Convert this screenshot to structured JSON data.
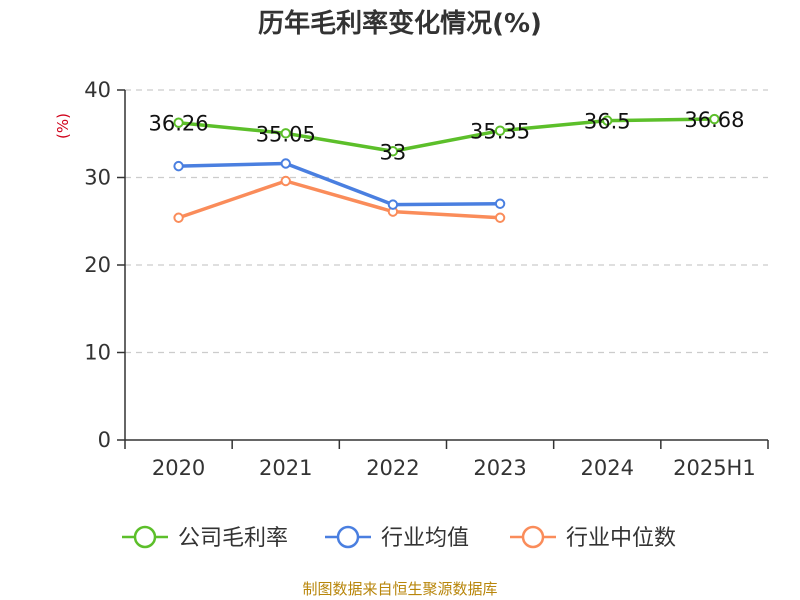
{
  "title": "历年毛利率变化情况(%)",
  "source": "制图数据来自恒生聚源数据库",
  "chart_data": {
    "type": "line",
    "title": "历年毛利率变化情况(%)",
    "xlabel": "",
    "ylabel": "(%)",
    "categories": [
      "2020",
      "2021",
      "2022",
      "2023",
      "2024",
      "2025H1"
    ],
    "ylim": [
      0,
      40
    ],
    "yticks": [
      0,
      10,
      20,
      30,
      40
    ],
    "grid": true,
    "legend_position": "bottom",
    "series": [
      {
        "name": "公司毛利率",
        "color": "#5cbf2a",
        "labeled": true,
        "values": [
          36.26,
          35.05,
          33,
          35.35,
          36.5,
          36.68
        ]
      },
      {
        "name": "行业均值",
        "color": "#4a7fe0",
        "labeled": false,
        "values": [
          31.3,
          31.6,
          26.9,
          27.0,
          null,
          null
        ]
      },
      {
        "name": "行业中位数",
        "color": "#fa8c5a",
        "labeled": false,
        "values": [
          25.4,
          29.6,
          26.1,
          25.4,
          null,
          null
        ]
      }
    ]
  }
}
